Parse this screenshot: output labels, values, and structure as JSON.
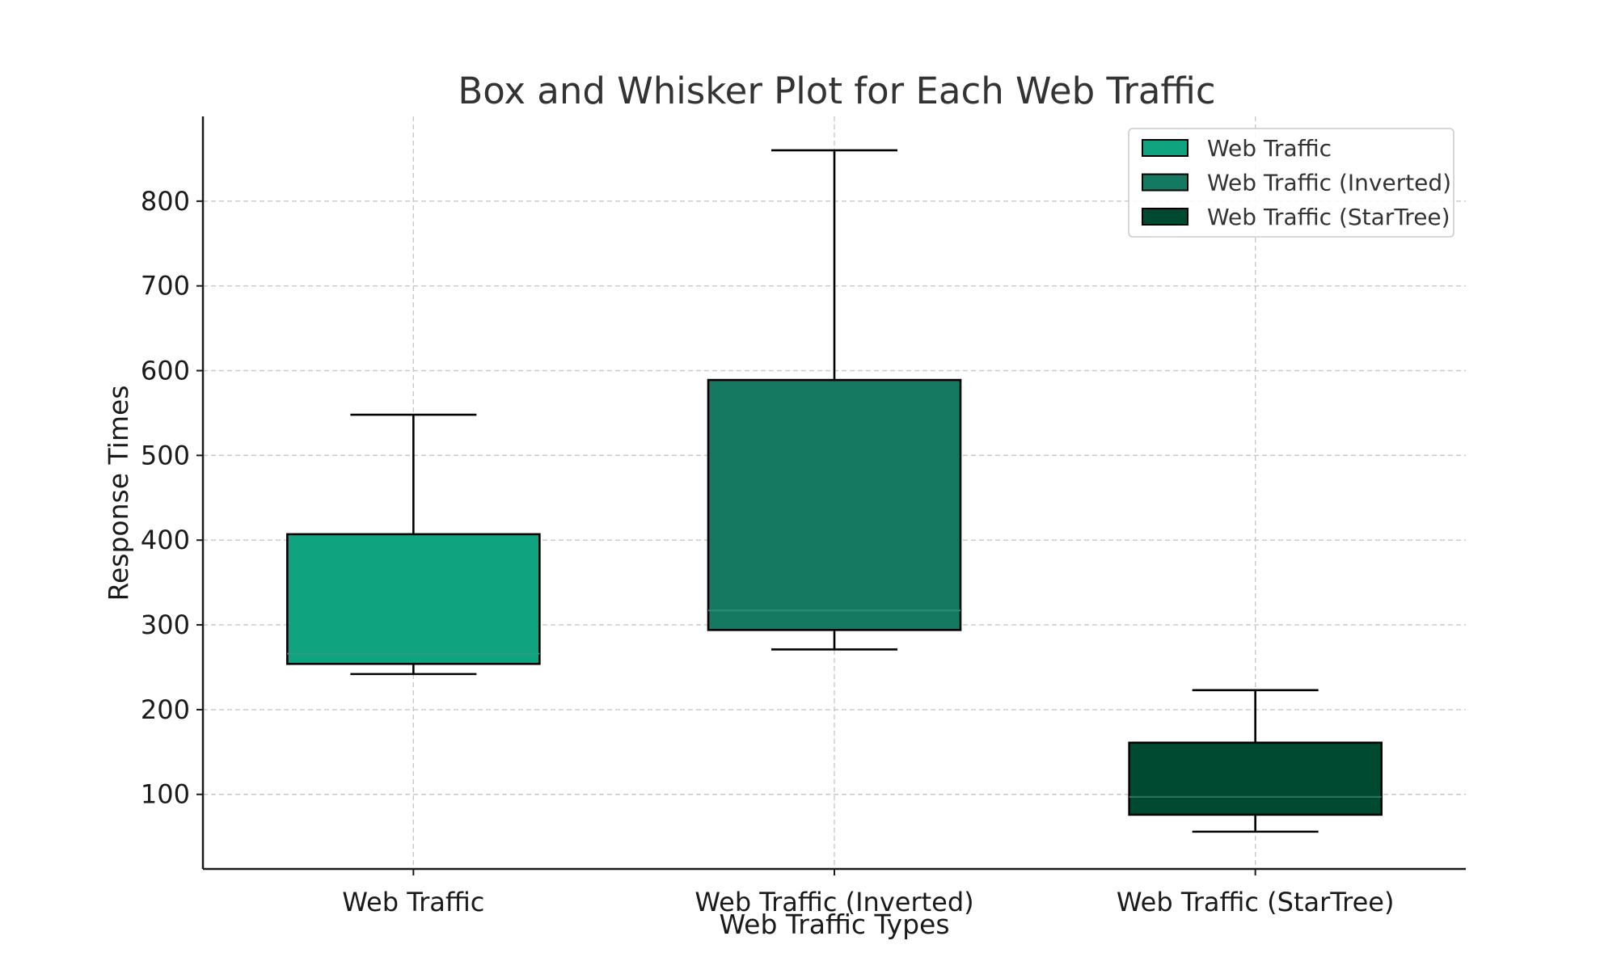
{
  "chart_data": {
    "type": "box",
    "title": "Box and Whisker Plot for Each Web Traffic",
    "xlabel": "Web Traffic Types",
    "ylabel": "Response Times",
    "ylim": [
      12,
      900
    ],
    "yticks": [
      "100",
      "200",
      "300",
      "400",
      "500",
      "600",
      "700",
      "800"
    ],
    "ytick_values": [
      100,
      200,
      300,
      400,
      500,
      600,
      700,
      800
    ],
    "grid": true,
    "legend_position": "top-right",
    "series": [
      {
        "name": "Web Traffic",
        "category": "Web Traffic",
        "min": 242,
        "q1": 254,
        "median": 266,
        "q3": 407,
        "max": 548,
        "color": "#10a37f",
        "median_color": "#2a9d82"
      },
      {
        "name": "Web Traffic (Inverted)",
        "category": "Web Traffic (Inverted)",
        "min": 271,
        "q1": 294,
        "median": 317,
        "q3": 589,
        "max": 860,
        "color": "#147960",
        "median_color": "#2a8a70"
      },
      {
        "name": "Web Traffic (StarTree)",
        "category": "Web Traffic (StarTree)",
        "min": 56,
        "q1": 76,
        "median": 97,
        "q3": 161,
        "max": 223,
        "color": "#004a32",
        "median_color": "#2e6f5a"
      }
    ]
  }
}
